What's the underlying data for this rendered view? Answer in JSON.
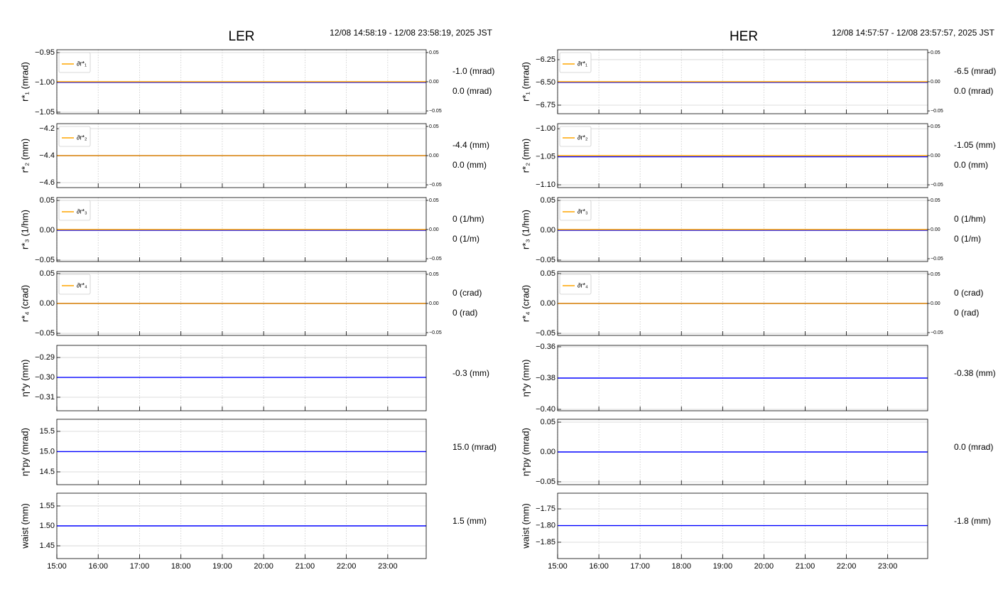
{
  "chart_data": [
    {
      "type": "line",
      "title": "LER",
      "subtitle": "12/08 14:58:19 - 12/08 23:58:19, 2025 JST",
      "x": [
        14.972,
        23.972
      ],
      "xlim": [
        15,
        23.93
      ],
      "xticks": [
        {
          "value": 15,
          "label": "15:00"
        },
        {
          "value": 16,
          "label": "16:00"
        },
        {
          "value": 17,
          "label": "17:00"
        },
        {
          "value": 18,
          "label": "18:00"
        },
        {
          "value": 19,
          "label": "19:00"
        },
        {
          "value": 20,
          "label": "20:00"
        },
        {
          "value": 21,
          "label": "21:00"
        },
        {
          "value": 22,
          "label": "22:00"
        },
        {
          "value": 23,
          "label": "23:00"
        }
      ],
      "grid": true,
      "panels": [
        {
          "ylabel": "r*₁ (mrad)",
          "ylim": [
            -1.0525,
            -0.9452
          ],
          "yticks": [
            {
              "value": -0.95,
              "label": "−0.95"
            },
            {
              "value": -1.0,
              "label": "−1.00"
            },
            {
              "value": -1.05,
              "label": "−1.05"
            }
          ],
          "y2lim": [
            -0.0548,
            0.0548
          ],
          "y2ticks": [
            {
              "value": 0.05,
              "label": "0.05"
            },
            {
              "value": 0,
              "label": "0.00"
            },
            {
              "value": -0.05,
              "label": "−0.05"
            }
          ],
          "legend": "upper left",
          "series": [
            {
              "color": "#0000ff",
              "values": [
                -1.0,
                -1.0
              ]
            },
            {
              "name": "∂r*₁",
              "color": "#ffa500",
              "axis": "y2",
              "values": [
                0,
                0
              ]
            }
          ],
          "annotations": [
            {
              "text": "-1.0 (mrad)",
              "color": "#1a1ae6"
            },
            {
              "text": "0.0 (mrad)",
              "color": "#f5a623"
            }
          ]
        },
        {
          "ylabel": "r*₂ (mm)",
          "ylim": [
            -4.637,
            -4.163
          ],
          "yticks": [
            {
              "value": -4.2,
              "label": "−4.2"
            },
            {
              "value": -4.4,
              "label": "−4.4"
            },
            {
              "value": -4.6,
              "label": "−4.6"
            }
          ],
          "y2lim": [
            -0.0548,
            0.0548
          ],
          "y2ticks": [
            {
              "value": 0.05,
              "label": "0.05"
            },
            {
              "value": 0,
              "label": "0.00"
            },
            {
              "value": -0.05,
              "label": "−0.05"
            }
          ],
          "legend": "upper left",
          "series": [
            {
              "color": "#0000ff",
              "values": [
                -4.4,
                -4.4
              ]
            },
            {
              "name": "∂r*₂",
              "color": "#ffa500",
              "axis": "y2",
              "values": [
                0,
                0
              ]
            }
          ],
          "annotations": [
            {
              "text": "-4.4 (mm)",
              "color": "#1a1ae6"
            },
            {
              "text": "0.0 (mm)",
              "color": "#f5a623"
            }
          ]
        },
        {
          "ylabel": "r*₃ (1/hm)",
          "ylim": [
            -0.0524,
            0.0548
          ],
          "yticks": [
            0.05,
            {
              "value": 0,
              "label": "0.00"
            },
            {
              "value": -0.05,
              "label": "−0.05"
            }
          ],
          "y2lim": [
            -0.0548,
            0.0548
          ],
          "y2ticks": [
            {
              "value": 0.05,
              "label": "0.05"
            },
            {
              "value": 0,
              "label": "0.00"
            },
            {
              "value": -0.05,
              "label": "−0.05"
            }
          ],
          "legend": "upper left",
          "series": [
            {
              "color": "#0000ff",
              "values": [
                0,
                0
              ]
            },
            {
              "name": "∂r*₃",
              "color": "#ffa500",
              "axis": "y2",
              "values": [
                0,
                0
              ]
            }
          ],
          "annotations": [
            {
              "text": "0 (1/hm)",
              "color": "#1a1ae6"
            },
            {
              "text": "0 (1/m)",
              "color": "#f5a623"
            }
          ]
        },
        {
          "ylabel": "r*₄ (crad)",
          "ylim": [
            -0.0535,
            0.0535
          ],
          "yticks": [
            0.05,
            {
              "value": 0,
              "label": "0.00"
            },
            {
              "value": -0.05,
              "label": "−0.05"
            }
          ],
          "y2lim": [
            -0.0548,
            0.0548
          ],
          "y2ticks": [
            {
              "value": 0.05,
              "label": "0.05"
            },
            {
              "value": 0,
              "label": "0.00"
            },
            {
              "value": -0.05,
              "label": "−0.05"
            }
          ],
          "legend": "upper left",
          "series": [
            {
              "color": "#0000ff",
              "values": [
                0,
                0
              ]
            },
            {
              "name": "∂r*₄",
              "color": "#ffa500",
              "axis": "y2",
              "values": [
                0,
                0
              ]
            }
          ],
          "annotations": [
            {
              "text": "0 (crad)",
              "color": "#1a1ae6"
            },
            {
              "text": "0 (rad)",
              "color": "#f5a623"
            }
          ]
        },
        {
          "ylabel": "η*y (mm)",
          "ylim": [
            -0.3168,
            -0.2839
          ],
          "yticks": [
            {
              "value": -0.29,
              "label": "−0.29"
            },
            {
              "value": -0.3,
              "label": "−0.30"
            },
            {
              "value": -0.31,
              "label": "−0.31"
            }
          ],
          "series": [
            {
              "color": "#0000ff",
              "values": [
                -0.3,
                -0.3
              ]
            }
          ],
          "annotations": [
            {
              "text": "-0.3 (mm)",
              "color": "#1a1ae6"
            }
          ]
        },
        {
          "ylabel": "η*py (mrad)",
          "ylim": [
            14.184,
            15.798
          ],
          "yticks": [
            15.5,
            {
              "value": 15,
              "label": "15.0"
            },
            14.5
          ],
          "series": [
            {
              "color": "#0000ff",
              "values": [
                15.0,
                15.0
              ]
            }
          ],
          "annotations": [
            {
              "text": "15.0 (mrad)",
              "color": "#1a1ae6"
            }
          ]
        },
        {
          "ylabel": "waist (mm)",
          "ylim": [
            1.418,
            1.582
          ],
          "yticks": [
            1.55,
            {
              "value": 1.5,
              "label": "1.50"
            },
            1.45
          ],
          "series": [
            {
              "color": "#0000ff",
              "values": [
                1.5,
                1.5
              ]
            }
          ],
          "annotations": [
            {
              "text": "1.5 (mm)",
              "color": "#1a1ae6"
            }
          ]
        }
      ]
    },
    {
      "type": "line",
      "title": "HER",
      "subtitle": "12/08 14:57:57 - 12/08 23:57:57, 2025 JST",
      "x": [
        14.966,
        23.966
      ],
      "xlim": [
        15,
        23.97
      ],
      "xticks": [
        {
          "value": 15,
          "label": "15:00"
        },
        {
          "value": 16,
          "label": "16:00"
        },
        {
          "value": 17,
          "label": "17:00"
        },
        {
          "value": 18,
          "label": "18:00"
        },
        {
          "value": 19,
          "label": "19:00"
        },
        {
          "value": 20,
          "label": "20:00"
        },
        {
          "value": 21,
          "label": "21:00"
        },
        {
          "value": 22,
          "label": "22:00"
        },
        {
          "value": 23,
          "label": "23:00"
        }
      ],
      "grid": true,
      "panels": [
        {
          "ylabel": "r*₁ (mrad)",
          "ylim": [
            -6.844,
            -6.141
          ],
          "yticks": [
            {
              "value": -6.25,
              "label": "−6.25"
            },
            {
              "value": -6.5,
              "label": "−6.50"
            },
            {
              "value": -6.75,
              "label": "−6.75"
            }
          ],
          "y2lim": [
            -0.0548,
            0.0548
          ],
          "y2ticks": [
            {
              "value": 0.05,
              "label": "0.05"
            },
            {
              "value": 0,
              "label": "0.00"
            },
            {
              "value": -0.05,
              "label": "−0.05"
            }
          ],
          "legend": "upper left",
          "series": [
            {
              "color": "#0000ff",
              "values": [
                -6.5,
                -6.5
              ]
            },
            {
              "name": "∂r*₁",
              "color": "#ffa500",
              "axis": "y2",
              "values": [
                0,
                0
              ]
            }
          ],
          "annotations": [
            {
              "text": "-6.5 (mrad)",
              "color": "#1a1ae6"
            },
            {
              "text": "0.0 (mrad)",
              "color": "#f5a623"
            }
          ]
        },
        {
          "ylabel": "r*₂ (mm)",
          "ylim": [
            -1.105,
            -0.991
          ],
          "yticks": [
            {
              "value": -1.0,
              "label": "−1.00"
            },
            {
              "value": -1.05,
              "label": "−1.05"
            },
            {
              "value": -1.1,
              "label": "−1.10"
            }
          ],
          "y2lim": [
            -0.0548,
            0.0548
          ],
          "y2ticks": [
            {
              "value": 0.05,
              "label": "0.05"
            },
            {
              "value": 0,
              "label": "0.00"
            },
            {
              "value": -0.05,
              "label": "−0.05"
            }
          ],
          "legend": "upper left",
          "series": [
            {
              "color": "#0000ff",
              "values": [
                -1.05,
                -1.05
              ]
            },
            {
              "name": "∂r*₂",
              "color": "#ffa500",
              "axis": "y2",
              "values": [
                0,
                0
              ]
            }
          ],
          "annotations": [
            {
              "text": "-1.05 (mm)",
              "color": "#1a1ae6"
            },
            {
              "text": "0.0 (mm)",
              "color": "#f5a623"
            }
          ]
        },
        {
          "ylabel": "r*₃ (1/hm)",
          "ylim": [
            -0.0524,
            0.0548
          ],
          "yticks": [
            0.05,
            {
              "value": 0,
              "label": "0.00"
            },
            {
              "value": -0.05,
              "label": "−0.05"
            }
          ],
          "y2lim": [
            -0.0548,
            0.0548
          ],
          "y2ticks": [
            {
              "value": 0.05,
              "label": "0.05"
            },
            {
              "value": 0,
              "label": "0.00"
            },
            {
              "value": -0.05,
              "label": "−0.05"
            }
          ],
          "legend": "upper left",
          "series": [
            {
              "color": "#0000ff",
              "values": [
                0,
                0
              ]
            },
            {
              "name": "∂r*₃",
              "color": "#ffa500",
              "axis": "y2",
              "values": [
                0,
                0
              ]
            }
          ],
          "annotations": [
            {
              "text": "0 (1/hm)",
              "color": "#1a1ae6"
            },
            {
              "text": "0 (1/m)",
              "color": "#f5a623"
            }
          ]
        },
        {
          "ylabel": "r*₄ (crad)",
          "ylim": [
            -0.0535,
            0.0535
          ],
          "yticks": [
            0.05,
            {
              "value": 0,
              "label": "0.00"
            },
            {
              "value": -0.05,
              "label": "−0.05"
            }
          ],
          "y2lim": [
            -0.0548,
            0.0548
          ],
          "y2ticks": [
            {
              "value": 0.05,
              "label": "0.05"
            },
            {
              "value": 0,
              "label": "0.00"
            },
            {
              "value": -0.05,
              "label": "−0.05"
            }
          ],
          "legend": "upper left",
          "series": [
            {
              "color": "#0000ff",
              "values": [
                0,
                0
              ]
            },
            {
              "name": "∂r*₄",
              "color": "#ffa500",
              "axis": "y2",
              "values": [
                0,
                0
              ]
            }
          ],
          "annotations": [
            {
              "text": "0 (crad)",
              "color": "#1a1ae6"
            },
            {
              "text": "0 (rad)",
              "color": "#f5a623"
            }
          ]
        },
        {
          "ylabel": "η*y (mm)",
          "ylim": [
            -0.4009,
            -0.3591
          ],
          "yticks": [
            {
              "value": -0.36,
              "label": "−0.36"
            },
            {
              "value": -0.38,
              "label": "−0.38"
            },
            {
              "value": -0.4,
              "label": "−0.40"
            }
          ],
          "series": [
            {
              "color": "#0000ff",
              "values": [
                -0.38,
                -0.38
              ]
            }
          ],
          "annotations": [
            {
              "text": "-0.38 (mm)",
              "color": "#1a1ae6"
            }
          ]
        },
        {
          "ylabel": "η*py (mrad)",
          "ylim": [
            -0.0548,
            0.0548
          ],
          "yticks": [
            0.05,
            {
              "value": 0,
              "label": "0.00"
            },
            {
              "value": -0.05,
              "label": "−0.05"
            }
          ],
          "series": [
            {
              "color": "#0000ff",
              "values": [
                0.0,
                0.0
              ]
            }
          ],
          "annotations": [
            {
              "text": "0.0 (mrad)",
              "color": "#1a1ae6"
            }
          ]
        },
        {
          "ylabel": "waist (mm)",
          "ylim": [
            -1.899,
            -1.703
          ],
          "yticks": [
            {
              "value": -1.75,
              "label": "−1.75"
            },
            {
              "value": -1.8,
              "label": "−1.80"
            },
            {
              "value": -1.85,
              "label": "−1.85"
            }
          ],
          "series": [
            {
              "color": "#0000ff",
              "values": [
                -1.8,
                -1.8
              ]
            }
          ],
          "annotations": [
            {
              "text": "-1.8 (mm)",
              "color": "#1a1ae6"
            }
          ]
        }
      ]
    }
  ]
}
